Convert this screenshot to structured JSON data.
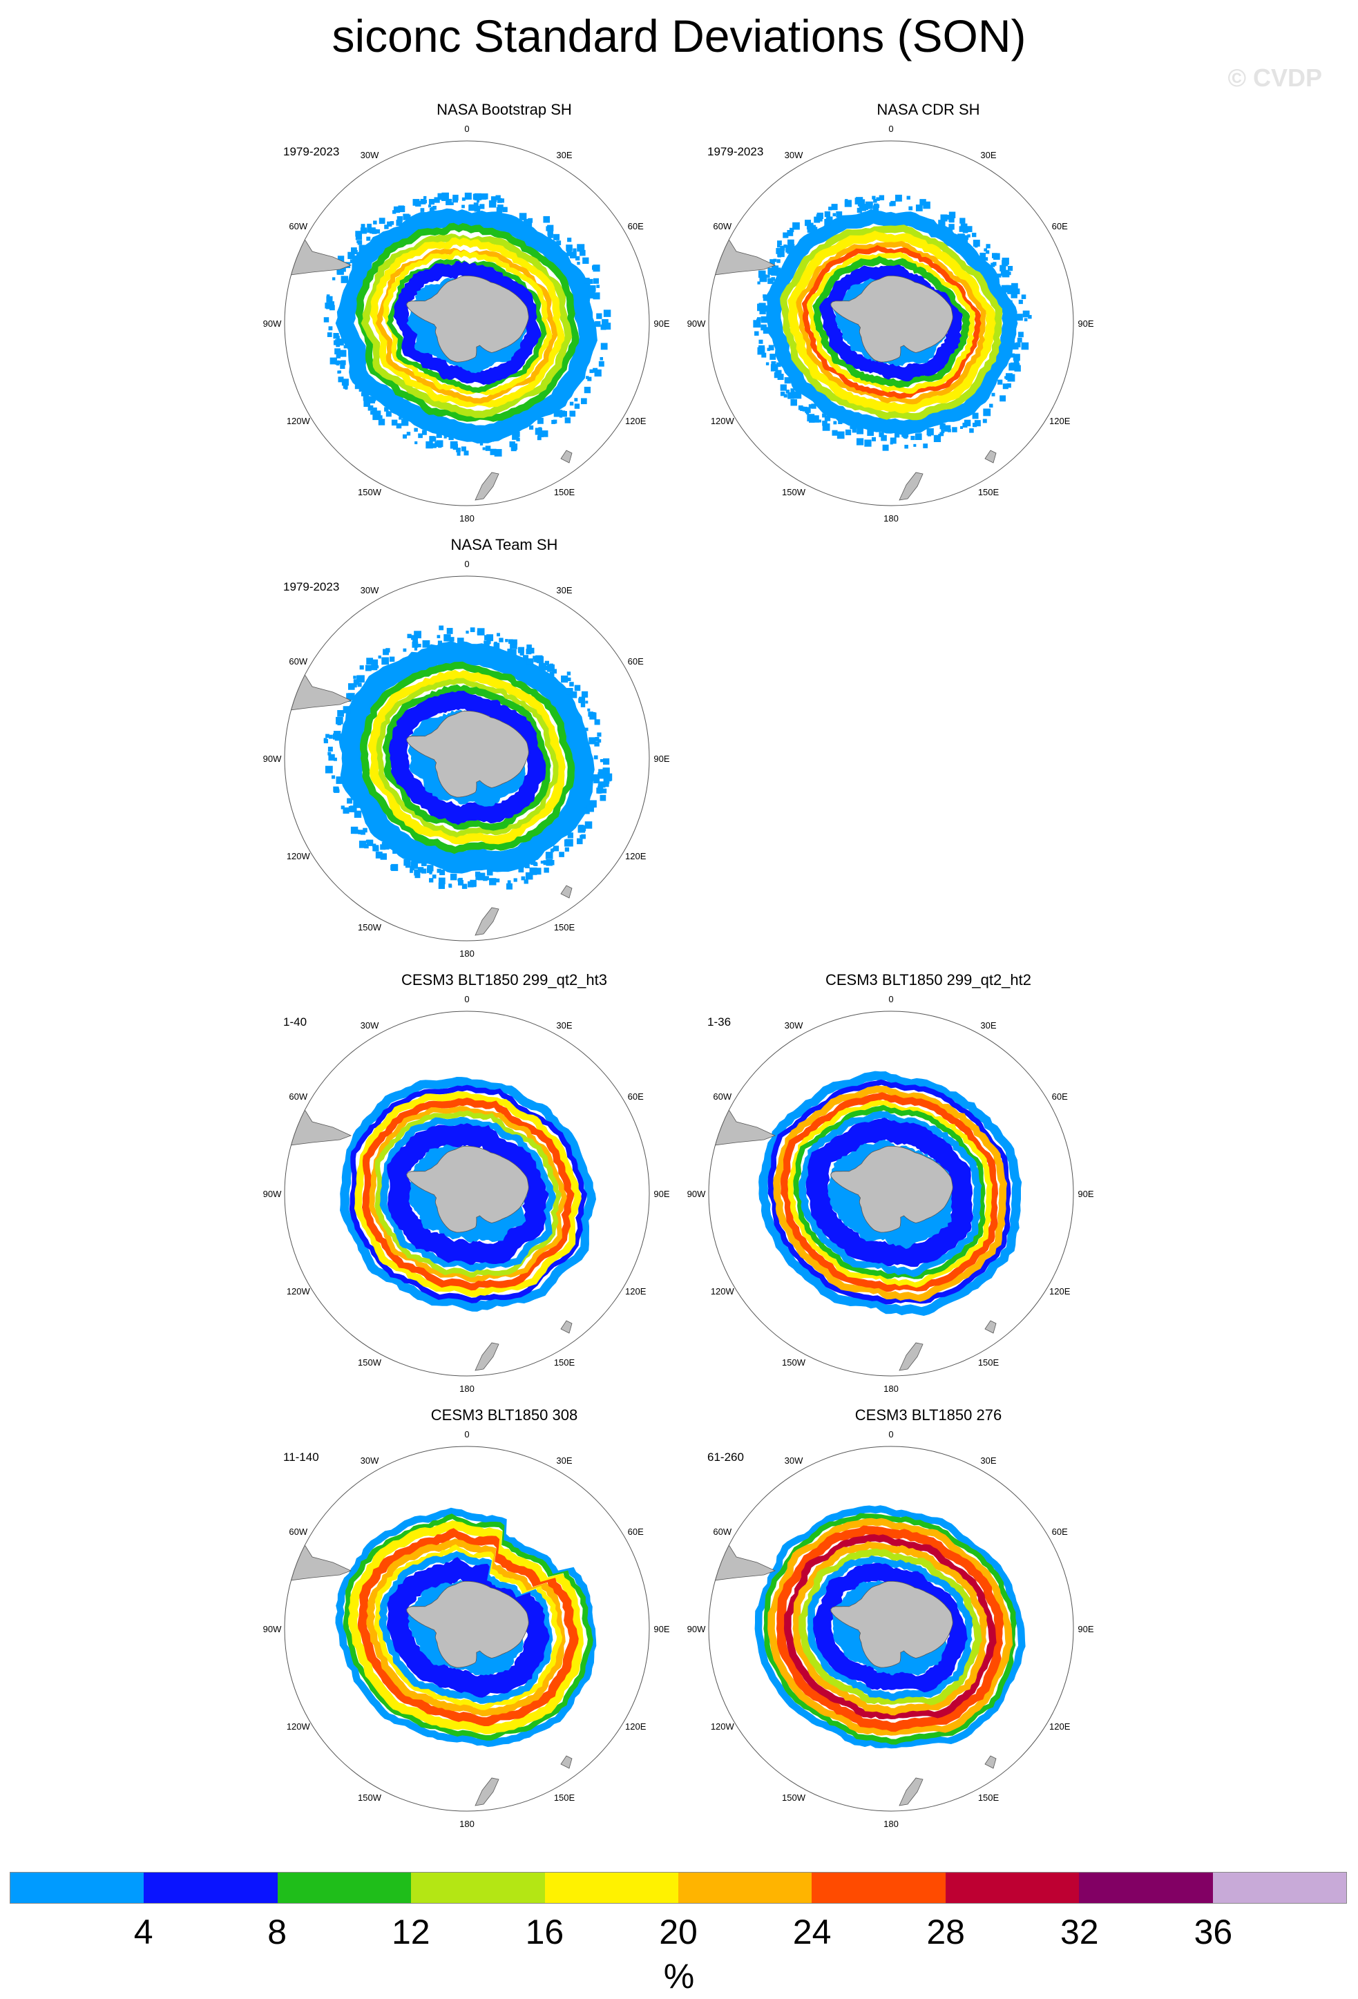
{
  "title": "siconc Standard Deviations (SON)",
  "watermark": "© CVDP",
  "chart_data": {
    "type": "heatmap",
    "projection": "south polar stereographic",
    "variable": "siconc",
    "statistic": "Standard Deviations",
    "season": "SON",
    "longitude_labels": [
      "0",
      "30E",
      "60E",
      "90E",
      "120E",
      "150E",
      "180",
      "150W",
      "120W",
      "90W",
      "60W",
      "30W"
    ],
    "panels": [
      {
        "title": "NASA Bootstrap SH",
        "years": "1979-2023",
        "row": 0,
        "col": 0,
        "style": "obs-bootstrap"
      },
      {
        "title": "NASA CDR SH",
        "years": "1979-2023",
        "row": 0,
        "col": 1,
        "style": "obs-cdr"
      },
      {
        "title": "NASA Team SH",
        "years": "1979-2023",
        "row": 1,
        "col": 0,
        "style": "obs-team"
      },
      {
        "title": "CESM3 BLT1850 299_qt2_ht3",
        "years": "1-40",
        "row": 2,
        "col": 0,
        "style": "model-ht3"
      },
      {
        "title": "CESM3 BLT1850 299_qt2_ht2",
        "years": "1-36",
        "row": 2,
        "col": 1,
        "style": "model-ht2"
      },
      {
        "title": "CESM3 BLT1850 308",
        "years": "11-140",
        "row": 3,
        "col": 0,
        "style": "model-308"
      },
      {
        "title": "CESM3 BLT1850 276",
        "years": "61-260",
        "row": 3,
        "col": 1,
        "style": "model-276"
      }
    ],
    "colorbar": {
      "levels": [
        4,
        8,
        12,
        16,
        20,
        24,
        28,
        32,
        36
      ],
      "labels": [
        "4",
        "8",
        "12",
        "16",
        "20",
        "24",
        "28",
        "32",
        "36"
      ],
      "colors": [
        "#009bff",
        "#0a14ff",
        "#1fbe1a",
        "#b4e614",
        "#fff200",
        "#ffb400",
        "#ff4b00",
        "#be0032",
        "#820064",
        "#c8aad8"
      ],
      "units": "%"
    },
    "land_color": "#bebebe"
  }
}
